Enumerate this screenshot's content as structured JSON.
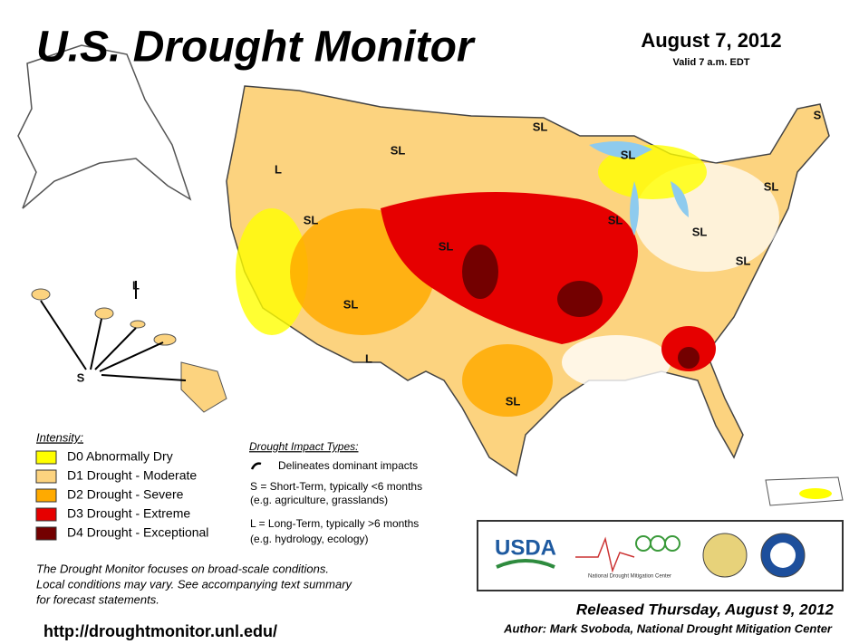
{
  "header": {
    "title": "U.S. Drought Monitor",
    "date": "August 7, 2012",
    "valid": "Valid 7 a.m. EDT"
  },
  "map": {
    "labels": [
      "S",
      "SL",
      "SL",
      "SL",
      "L",
      "SL",
      "SL",
      "SL",
      "SL",
      "SL",
      "SL",
      "SL",
      "L",
      "SL",
      "L",
      "S"
    ]
  },
  "legend": {
    "title": "Intensity:",
    "items": [
      {
        "label": "D0 Abnormally Dry",
        "color": "#ffff00"
      },
      {
        "label": "D1 Drought - Moderate",
        "color": "#fcd37f"
      },
      {
        "label": "D2 Drought - Severe",
        "color": "#ffaa00"
      },
      {
        "label": "D3 Drought - Extreme",
        "color": "#e60000"
      },
      {
        "label": "D4 Drought - Exceptional",
        "color": "#730000"
      }
    ]
  },
  "impact": {
    "title": "Drought Impact Types:",
    "lines": [
      "Delineates dominant impacts",
      "S = Short-Term, typically <6 months",
      "(e.g. agriculture, grasslands)",
      "L = Long-Term, typically >6 months",
      "(e.g. hydrology, ecology)"
    ]
  },
  "note": [
    "The Drought Monitor focuses on broad-scale conditions.",
    "Local conditions may vary. See accompanying text summary",
    "for forecast statements."
  ],
  "url": "http://droughtmonitor.unl.edu/",
  "logos": {
    "usda": "USDA",
    "ndmc": "National Drought Mitigation Center"
  },
  "footer": {
    "released": "Released Thursday, August 9, 2012",
    "author": "Author: Mark Svoboda, National Drought Mitigation Center"
  }
}
